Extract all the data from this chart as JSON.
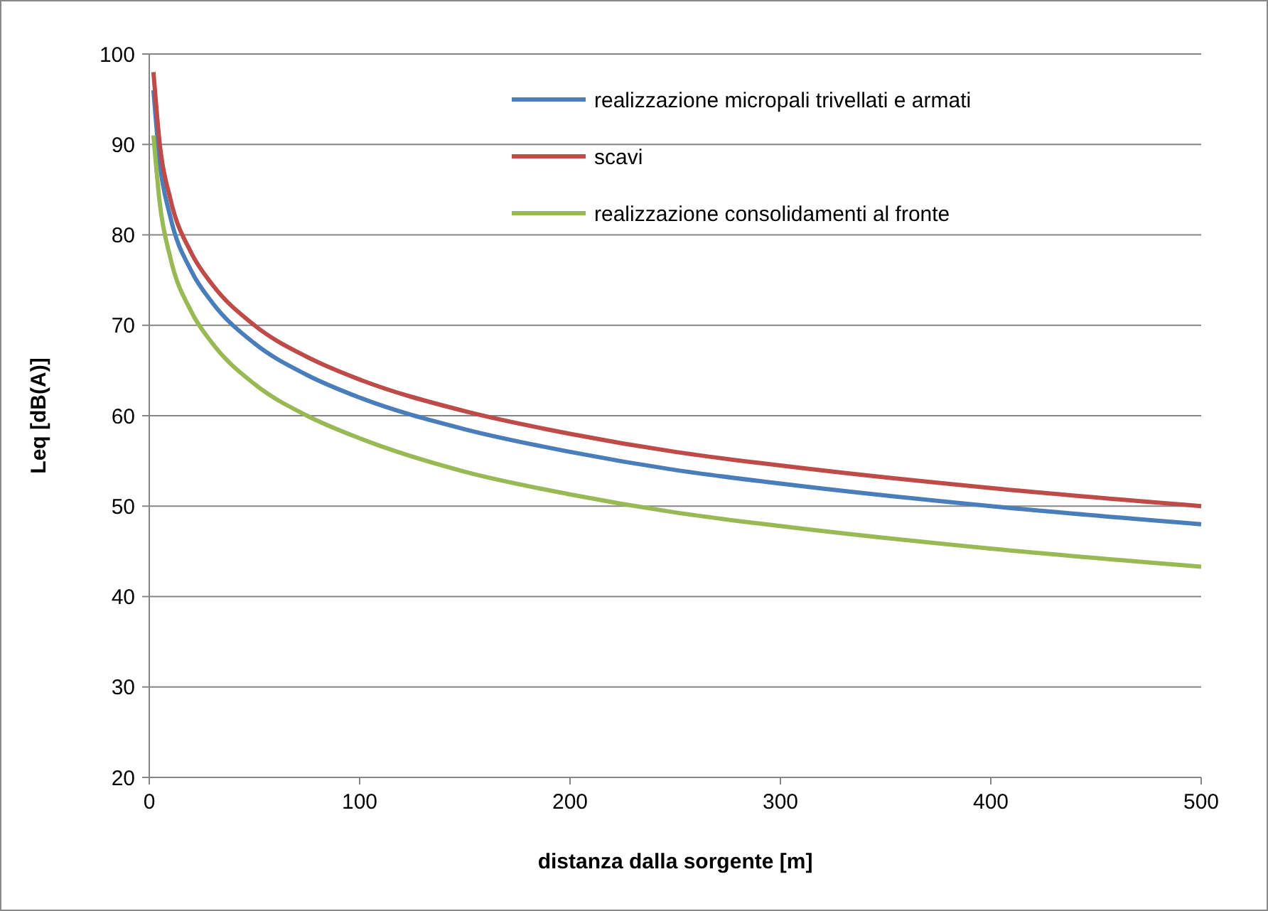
{
  "chart_data": {
    "type": "line",
    "xlabel": "distanza dalla sorgente [m]",
    "ylabel": "Leq [dB(A)]",
    "x": [
      2,
      5,
      10,
      20,
      30,
      50,
      75,
      100,
      150,
      200,
      250,
      300,
      400,
      500
    ],
    "series": [
      {
        "name": "realizzazione micropali trivellati e armati",
        "color": "#4a7ebb",
        "values": [
          96,
          88,
          82,
          76,
          72.5,
          68,
          64.5,
          62,
          58.5,
          56,
          54,
          52.5,
          50,
          48
        ]
      },
      {
        "name": "scavi",
        "color": "#be4b48",
        "values": [
          98,
          90,
          84,
          78,
          74.5,
          70,
          66.5,
          64,
          60.5,
          58,
          56,
          54.5,
          52,
          50
        ]
      },
      {
        "name": "realizzazione consolidamenti al fronte",
        "color": "#98b954",
        "values": [
          91,
          83.5,
          77.5,
          71.5,
          68,
          63.5,
          60,
          57.5,
          53.8,
          51.3,
          49.3,
          47.8,
          45.3,
          43.3
        ]
      }
    ],
    "xlim": [
      0,
      500
    ],
    "xticks": [
      0,
      100,
      200,
      300,
      400,
      500
    ],
    "ylim": [
      20,
      100
    ],
    "yticks": [
      20,
      30,
      40,
      50,
      60,
      70,
      80,
      90,
      100
    ],
    "grid": "y",
    "legend": "top right",
    "marker": "none",
    "line_style": "solid"
  }
}
